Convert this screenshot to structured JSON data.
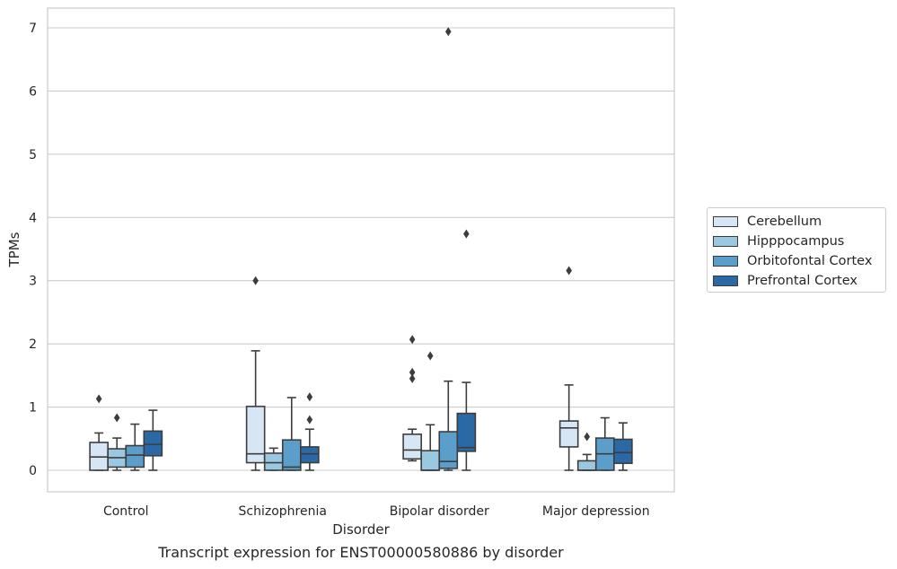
{
  "chart_data": {
    "type": "box",
    "caption": "Transcript expression for ENST00000580886 by disorder",
    "xlabel": "Disorder",
    "ylabel": "TPMs",
    "ylim": [
      -0.35,
      7.3
    ],
    "yticks": [
      0,
      1,
      2,
      3,
      4,
      5,
      6,
      7
    ],
    "grid": true,
    "legend_position": "right",
    "categories": [
      "Control",
      "Schizophrenia",
      "Bipolar disorder",
      "Major depression"
    ],
    "series": [
      {
        "name": "Cerebellum",
        "color": "#d6e6f4",
        "boxes": [
          {
            "whislo": 0.0,
            "q1": 0.0,
            "med": 0.21,
            "q3": 0.44,
            "whishi": 0.59,
            "fliers": [
              1.13
            ]
          },
          {
            "whislo": 0.0,
            "q1": 0.12,
            "med": 0.26,
            "q3": 1.01,
            "whishi": 1.89,
            "fliers": [
              3.0
            ]
          },
          {
            "whislo": 0.15,
            "q1": 0.18,
            "med": 0.32,
            "q3": 0.57,
            "whishi": 0.65,
            "fliers": [
              1.45,
              1.55,
              2.07
            ]
          },
          {
            "whislo": 0.0,
            "q1": 0.37,
            "med": 0.67,
            "q3": 0.78,
            "whishi": 1.35,
            "fliers": [
              3.16
            ]
          }
        ]
      },
      {
        "name": "Hipppocampus",
        "color": "#9ac8e0",
        "boxes": [
          {
            "whislo": 0.0,
            "q1": 0.05,
            "med": 0.2,
            "q3": 0.34,
            "whishi": 0.51,
            "fliers": [
              0.83
            ]
          },
          {
            "whislo": 0.0,
            "q1": 0.0,
            "med": 0.12,
            "q3": 0.27,
            "whishi": 0.35,
            "fliers": []
          },
          {
            "whislo": 0.0,
            "q1": 0.0,
            "med": 0.0,
            "q3": 0.31,
            "whishi": 0.72,
            "fliers": [
              1.81
            ]
          },
          {
            "whislo": 0.0,
            "q1": 0.0,
            "med": 0.0,
            "q3": 0.15,
            "whishi": 0.25,
            "fliers": [
              0.53
            ]
          }
        ]
      },
      {
        "name": "Orbitofontal Cortex",
        "color": "#5a9ec9",
        "boxes": [
          {
            "whislo": 0.0,
            "q1": 0.05,
            "med": 0.24,
            "q3": 0.39,
            "whishi": 0.73,
            "fliers": []
          },
          {
            "whislo": 0.0,
            "q1": 0.0,
            "med": 0.05,
            "q3": 0.48,
            "whishi": 1.15,
            "fliers": []
          },
          {
            "whislo": 0.0,
            "q1": 0.03,
            "med": 0.14,
            "q3": 0.61,
            "whishi": 1.41,
            "fliers": [
              6.94
            ]
          },
          {
            "whislo": 0.0,
            "q1": 0.0,
            "med": 0.26,
            "q3": 0.51,
            "whishi": 0.83,
            "fliers": []
          }
        ]
      },
      {
        "name": "Prefrontal Cortex",
        "color": "#2a69a6",
        "boxes": [
          {
            "whislo": 0.0,
            "q1": 0.23,
            "med": 0.41,
            "q3": 0.62,
            "whishi": 0.95,
            "fliers": []
          },
          {
            "whislo": 0.0,
            "q1": 0.12,
            "med": 0.26,
            "q3": 0.37,
            "whishi": 0.65,
            "fliers": [
              0.8,
              1.16
            ]
          },
          {
            "whislo": 0.0,
            "q1": 0.3,
            "med": 0.36,
            "q3": 0.9,
            "whishi": 1.39,
            "fliers": [
              3.74
            ]
          },
          {
            "whislo": 0.0,
            "q1": 0.11,
            "med": 0.28,
            "q3": 0.49,
            "whishi": 0.75,
            "fliers": []
          }
        ]
      }
    ]
  }
}
